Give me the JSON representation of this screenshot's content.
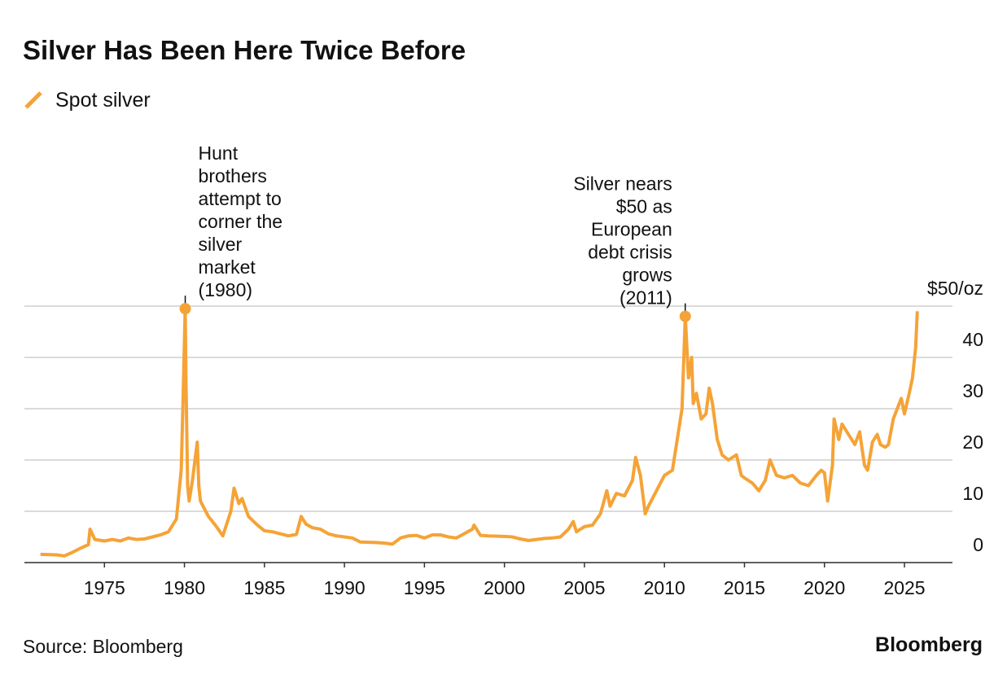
{
  "chart_data": {
    "type": "line",
    "title": "Silver Has Been Here Twice Before",
    "source": "Source: Bloomberg",
    "brand": "Bloomberg",
    "legend": "top-left",
    "grid": true,
    "xlim": [
      1970,
      2028
    ],
    "xticks": [
      1975,
      1980,
      1985,
      1990,
      1995,
      2000,
      2005,
      2010,
      2015,
      2020,
      2025
    ],
    "ylim": [
      0,
      50
    ],
    "yticks": [
      0,
      10,
      20,
      30,
      40,
      {
        "value": 50,
        "label": "$50/oz"
      }
    ],
    "x": [
      1971,
      1972,
      1972.5,
      1973,
      1973.5,
      1974,
      1974.1,
      1974.4,
      1975,
      1975.5,
      1976,
      1976.5,
      1977,
      1977.5,
      1978,
      1978.5,
      1979,
      1979.5,
      1979.7,
      1979.8,
      1979.9,
      1980.05,
      1980.1,
      1980.2,
      1980.3,
      1980.5,
      1980.7,
      1980.8,
      1980.9,
      1981,
      1981.5,
      1982,
      1982.4,
      1982.9,
      1983.1,
      1983.4,
      1983.6,
      1984,
      1984.5,
      1985,
      1985.5,
      1986,
      1986.5,
      1987,
      1987.3,
      1987.6,
      1988,
      1988.5,
      1989,
      1989.5,
      1990,
      1990.5,
      1991,
      1992,
      1992.5,
      1993,
      1993.5,
      1994,
      1994.5,
      1995,
      1995.5,
      1996,
      1996.5,
      1997,
      1998,
      1998.1,
      1998.5,
      1999,
      2000,
      2000.5,
      2001,
      2001.5,
      2002,
      2002.5,
      2003,
      2003.5,
      2004,
      2004.3,
      2004.5,
      2005,
      2005.5,
      2006,
      2006.4,
      2006.6,
      2007,
      2007.5,
      2008,
      2008.2,
      2008.5,
      2008.8,
      2009,
      2009.5,
      2010,
      2010.5,
      2010.9,
      2011.1,
      2011.3,
      2011.5,
      2011.7,
      2011.8,
      2012,
      2012.3,
      2012.6,
      2012.8,
      2013,
      2013.3,
      2013.6,
      2014,
      2014.5,
      2014.8,
      2015,
      2015.5,
      2015.9,
      2016.3,
      2016.6,
      2017,
      2017.5,
      2018,
      2018.5,
      2019,
      2019.5,
      2019.8,
      2020,
      2020.2,
      2020.5,
      2020.6,
      2020.9,
      2021.1,
      2021.5,
      2021.9,
      2022.2,
      2022.5,
      2022.7,
      2023,
      2023.3,
      2023.5,
      2023.8,
      2024,
      2024.3,
      2024.8,
      2025,
      2025.3,
      2025.5,
      2025.7,
      2025.8
    ],
    "series": [
      {
        "name": "Spot silver",
        "color": "#f5a337",
        "values": [
          1.6,
          1.5,
          1.3,
          2.0,
          2.8,
          3.5,
          6.5,
          4.5,
          4.2,
          4.5,
          4.2,
          4.8,
          4.5,
          4.6,
          5.0,
          5.4,
          6.0,
          8.5,
          15,
          18,
          30,
          49.5,
          35,
          15,
          12,
          16,
          21,
          23.5,
          15,
          12,
          9,
          7,
          5.2,
          10,
          14.5,
          11.5,
          12.5,
          9,
          7.5,
          6.2,
          6,
          5.6,
          5.2,
          5.5,
          9.0,
          7.5,
          6.8,
          6.5,
          5.6,
          5.2,
          5.0,
          4.8,
          4.0,
          3.9,
          3.8,
          3.6,
          4.8,
          5.2,
          5.3,
          4.8,
          5.4,
          5.4,
          5.0,
          4.8,
          6.5,
          7.3,
          5.3,
          5.2,
          5.1,
          5.0,
          4.6,
          4.3,
          4.5,
          4.7,
          4.8,
          5.0,
          6.5,
          8.0,
          6.0,
          7.0,
          7.3,
          9.5,
          14,
          11,
          13.5,
          13,
          16,
          20.5,
          17,
          9.5,
          11,
          14,
          17,
          18,
          26,
          30,
          48,
          36,
          40,
          31,
          33,
          28,
          29,
          34,
          31,
          24,
          21,
          20,
          21,
          17,
          16.5,
          15.5,
          14,
          16,
          20,
          17,
          16.5,
          17,
          15.5,
          15,
          17,
          18,
          17.5,
          12,
          19,
          28,
          24,
          27,
          25,
          23,
          25.5,
          19,
          18,
          23.5,
          25,
          23,
          22.5,
          23,
          28,
          32,
          29,
          33,
          36,
          42,
          49
        ]
      }
    ],
    "annotations": [
      {
        "text": [
          "Hunt",
          "brothers",
          "attempt to",
          "corner the",
          "silver",
          "market",
          "(1980)"
        ],
        "x": 1980.05,
        "y": 49.5
      },
      {
        "text": [
          "Silver nears",
          "$50 as",
          "European",
          "debt crisis",
          "grows",
          "(2011)"
        ],
        "x": 2011.3,
        "y": 48
      }
    ]
  }
}
